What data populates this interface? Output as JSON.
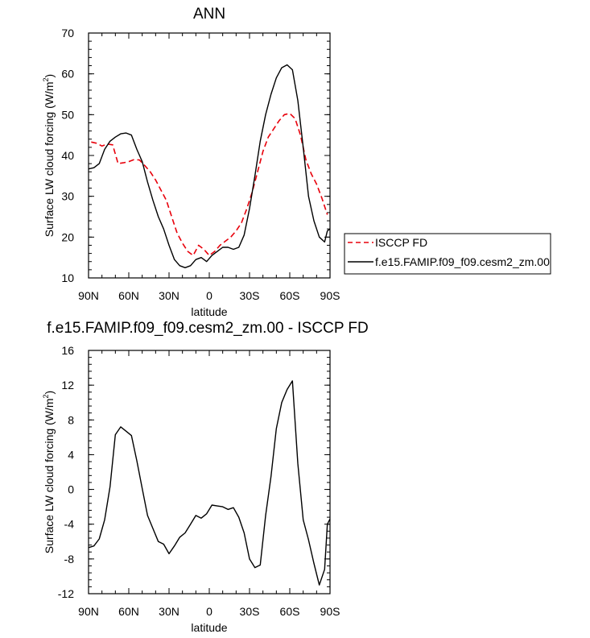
{
  "chart_data": [
    {
      "type": "line",
      "title": "ANN",
      "xlabel": "latitude",
      "ylabel": "Surface LW cloud forcing (W/m",
      "ylabel_sup": "2",
      "ylabel_end": ")",
      "xlim": [
        -90,
        90
      ],
      "ylim": [
        10,
        70
      ],
      "xticks": [
        -90,
        -60,
        -30,
        0,
        30,
        60,
        90
      ],
      "xtick_labels": [
        "90N",
        "60N",
        "30N",
        "0",
        "30S",
        "60S",
        "90S"
      ],
      "yticks": [
        10,
        20,
        30,
        40,
        50,
        60,
        70
      ],
      "ytick_labels": [
        "10",
        "20",
        "30",
        "40",
        "50",
        "60",
        "70"
      ],
      "legend": "right",
      "series": [
        {
          "name": "ISCCP FD",
          "color": "#e8000b",
          "dash": "dashed",
          "x": [
            -88,
            -84,
            -80,
            -76,
            -72,
            -68,
            -64,
            -60,
            -56,
            -52,
            -48,
            -44,
            -40,
            -36,
            -32,
            -28,
            -24,
            -20,
            -16,
            -12,
            -8,
            -4,
            0,
            4,
            8,
            12,
            16,
            20,
            24,
            28,
            32,
            36,
            40,
            44,
            48,
            52,
            56,
            60,
            64,
            68,
            72,
            76,
            80,
            84,
            88
          ],
          "y": [
            43.3,
            43.0,
            42.3,
            42.8,
            42.6,
            38.0,
            38.2,
            38.5,
            39.0,
            38.9,
            37.5,
            36.0,
            34.0,
            31.5,
            29.0,
            25.0,
            21.0,
            18.5,
            16.5,
            15.5,
            18.0,
            17.0,
            15.5,
            16.5,
            18.0,
            19.0,
            20.0,
            21.5,
            23.5,
            27.0,
            31.0,
            36.0,
            41.0,
            44.5,
            46.5,
            48.5,
            50.0,
            50.3,
            49.0,
            45.0,
            39.0,
            35.5,
            33.0,
            29.5,
            25.5
          ]
        },
        {
          "name": "f.e15.FAMIP.f09_f09.cesm2_zm.00",
          "color": "#000000",
          "dash": "solid",
          "x": [
            -90,
            -86,
            -82,
            -78,
            -74,
            -70,
            -66,
            -62,
            -58,
            -54,
            -50,
            -46,
            -42,
            -38,
            -34,
            -30,
            -26,
            -22,
            -18,
            -14,
            -10,
            -6,
            -2,
            2,
            6,
            10,
            14,
            18,
            22,
            26,
            30,
            34,
            38,
            42,
            46,
            50,
            54,
            58,
            62,
            66,
            70,
            74,
            78,
            82,
            86,
            88,
            90
          ],
          "y": [
            36.7,
            37.0,
            38.0,
            41.5,
            43.5,
            44.5,
            45.3,
            45.5,
            45.0,
            41.5,
            38.5,
            33.5,
            29.0,
            25.0,
            22.0,
            18.0,
            14.5,
            13.0,
            12.5,
            13.0,
            14.5,
            15.0,
            14.0,
            15.5,
            16.5,
            17.5,
            17.5,
            17.0,
            17.5,
            20.5,
            27.0,
            35.0,
            43.5,
            50.0,
            55.0,
            59.0,
            61.5,
            62.2,
            61.0,
            53.5,
            42.0,
            30.0,
            24.0,
            20.0,
            18.8,
            21.5,
            22.0
          ]
        }
      ]
    },
    {
      "type": "line",
      "title": "f.e15.FAMIP.f09_f09.cesm2_zm.00 - ISCCP FD",
      "xlabel": "latitude",
      "ylabel": "Surface LW cloud forcing (W/m",
      "ylabel_sup": "2",
      "ylabel_end": ")",
      "xlim": [
        -90,
        90
      ],
      "ylim": [
        -12,
        16
      ],
      "xticks": [
        -90,
        -60,
        -30,
        0,
        30,
        60,
        90
      ],
      "xtick_labels": [
        "90N",
        "60N",
        "30N",
        "0",
        "30S",
        "60S",
        "90S"
      ],
      "yticks": [
        -12,
        -8,
        -4,
        0,
        4,
        8,
        12,
        16
      ],
      "ytick_labels": [
        "-12",
        "-8",
        "-4",
        "0",
        "4",
        "8",
        "12",
        "16"
      ],
      "series": [
        {
          "color": "#000000",
          "dash": "solid",
          "x": [
            -90,
            -86,
            -82,
            -78,
            -74,
            -70,
            -66,
            -62,
            -58,
            -54,
            -50,
            -46,
            -42,
            -38,
            -34,
            -30,
            -26,
            -22,
            -18,
            -14,
            -10,
            -6,
            -2,
            2,
            6,
            10,
            14,
            18,
            22,
            26,
            30,
            34,
            38,
            42,
            46,
            50,
            54,
            58,
            62,
            66,
            70,
            74,
            78,
            82,
            86,
            88,
            90
          ],
          "y": [
            -6.7,
            -6.5,
            -5.7,
            -3.5,
            0.3,
            6.3,
            7.2,
            6.7,
            6.2,
            3.3,
            0.1,
            -3.0,
            -4.5,
            -6.0,
            -6.3,
            -7.4,
            -6.5,
            -5.5,
            -5.0,
            -4.0,
            -3.0,
            -3.3,
            -2.8,
            -1.8,
            -1.9,
            -2.0,
            -2.3,
            -2.1,
            -3.2,
            -5.0,
            -8.0,
            -9.0,
            -8.7,
            -3.0,
            1.5,
            7.0,
            10.0,
            11.5,
            12.5,
            3.0,
            -3.5,
            -5.8,
            -8.5,
            -11.0,
            -9.2,
            -4.0,
            -3.4
          ]
        }
      ]
    }
  ],
  "legend": {
    "items": [
      {
        "label": "ISCCP FD",
        "color": "#e8000b",
        "dash": "dashed"
      },
      {
        "label": "f.e15.FAMIP.f09_f09.cesm2_zm.00",
        "color": "#000000",
        "dash": "solid"
      }
    ]
  }
}
